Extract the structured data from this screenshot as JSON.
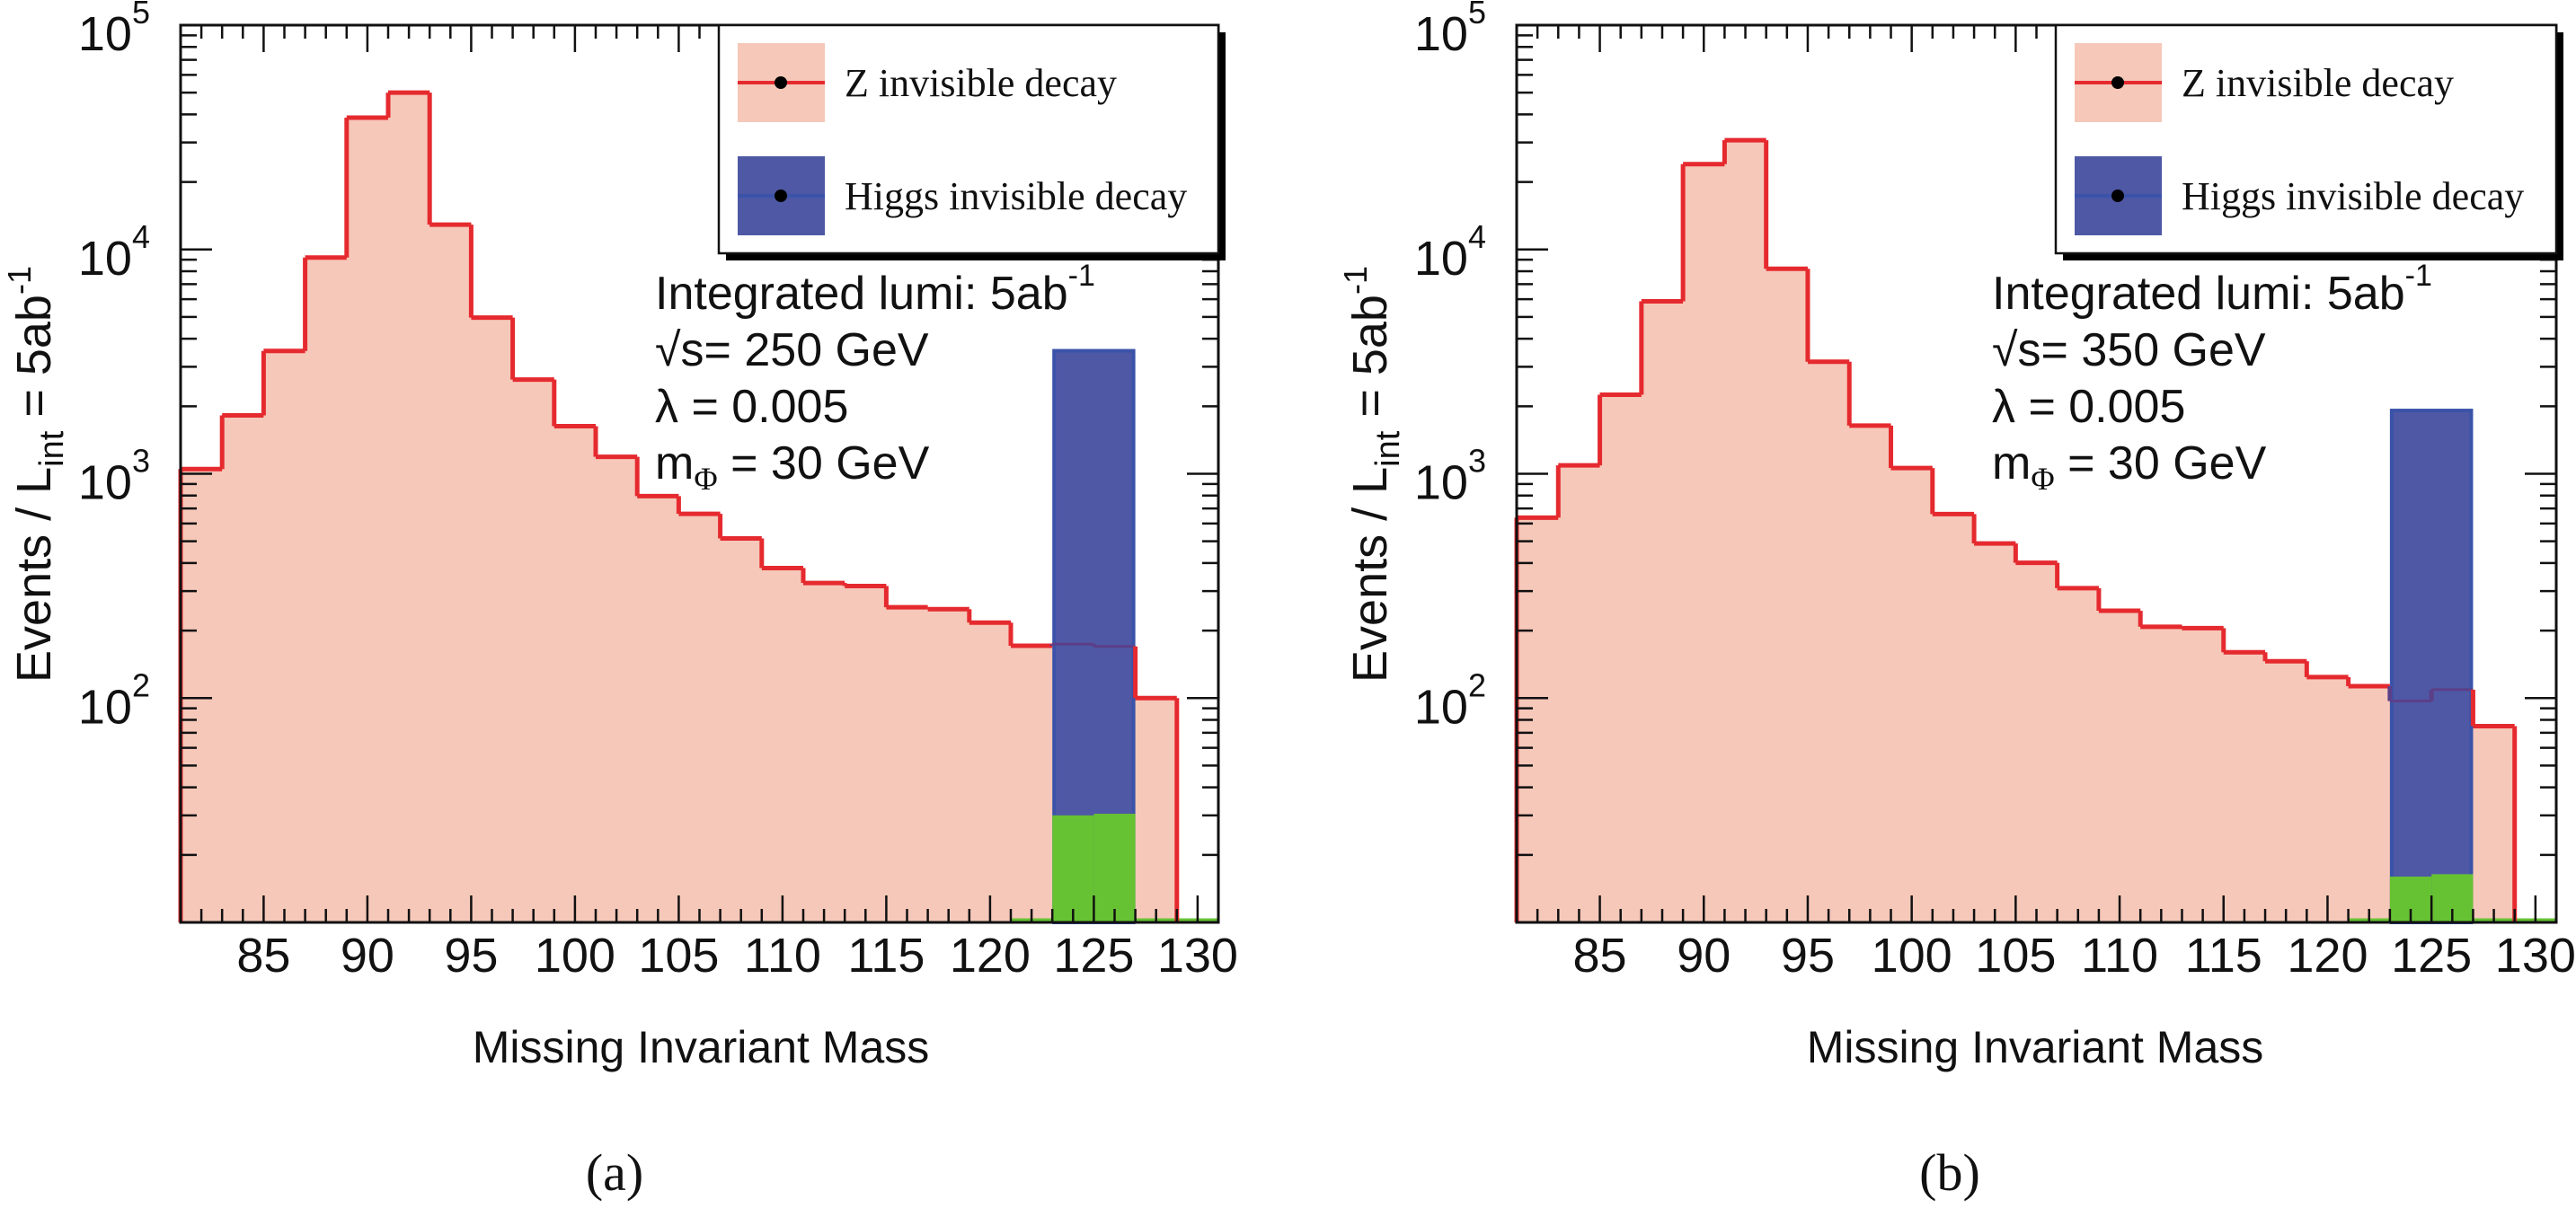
{
  "colors": {
    "z_fill": "#F6C8B9",
    "z_line": "#E52A2F",
    "higgs_fill": "#4F58A5",
    "higgs_edge": "#3A53A8",
    "overlap_line": "#5B3F88",
    "green": "#66C233",
    "axis": "#111111"
  },
  "chart_data": [
    {
      "type": "bar",
      "histogram": true,
      "panel_caption": "(a)",
      "xlabel": "Missing Invariant Mass",
      "ylabel_parts": [
        "Events / L",
        "int",
        " = 5ab",
        "-1"
      ],
      "ylabel": "Events / L_int = 5ab^-1",
      "yscale": "log",
      "xlim": [
        81,
        131
      ],
      "ylim": [
        10,
        100000
      ],
      "x_ticks": [
        85,
        90,
        95,
        100,
        105,
        110,
        115,
        120,
        125,
        130
      ],
      "y_ticks": [
        {
          "base": "10",
          "exp": "2",
          "value": 100
        },
        {
          "base": "10",
          "exp": "3",
          "value": 1000
        },
        {
          "base": "10",
          "exp": "4",
          "value": 10000
        },
        {
          "base": "10",
          "exp": "5",
          "value": 100000
        }
      ],
      "legend": {
        "position": "top-right",
        "entries": [
          {
            "label": "Z invisible decay",
            "series": "z"
          },
          {
            "label": "Higgs invisible decay",
            "series": "higgs"
          }
        ]
      },
      "annotations": [
        {
          "parts": [
            [
              "Integrated lumi: 5ab",
              "normal"
            ],
            [
              "-1",
              "sup"
            ]
          ]
        },
        {
          "parts": [
            [
              "√s= 250 GeV",
              "normal"
            ]
          ]
        },
        {
          "parts": [
            [
              "λ = 0.005",
              "normal"
            ]
          ]
        },
        {
          "parts": [
            [
              "m",
              "normal"
            ],
            [
              "Φ",
              "sub"
            ],
            [
              " = 30 GeV",
              "normal"
            ]
          ]
        }
      ],
      "bin_edges": [
        81,
        83,
        85,
        87,
        89,
        91,
        93,
        95,
        97,
        99,
        101,
        103,
        105,
        107,
        109,
        111,
        113,
        115,
        117,
        119,
        121,
        123,
        125,
        127,
        129,
        131
      ],
      "series": [
        {
          "name": "Z invisible decay",
          "key": "z",
          "values": [
            1050,
            1820,
            3530,
            9200,
            38700,
            50000,
            12900,
            4970,
            2630,
            1630,
            1190,
            795,
            663,
            515,
            380,
            326,
            316,
            254,
            249,
            217,
            171,
            174,
            170,
            100,
            0
          ]
        },
        {
          "name": "Higgs invisible decay",
          "key": "higgs",
          "bins": [
            [
              123,
              127
            ]
          ],
          "values": [
            3600
          ]
        },
        {
          "name": "green component",
          "key": "green",
          "bins": [
            [
              123,
              125
            ],
            [
              125,
              127
            ]
          ],
          "values": [
            30,
            30.5
          ],
          "baseline_range": [
            121,
            131
          ]
        }
      ]
    },
    {
      "type": "bar",
      "histogram": true,
      "panel_caption": "(b)",
      "xlabel": "Missing Invariant Mass",
      "ylabel_parts": [
        "Events / L",
        "int",
        " = 5ab",
        "-1"
      ],
      "ylabel": "Events / L_int = 5ab^-1",
      "yscale": "log",
      "xlim": [
        81,
        131
      ],
      "ylim": [
        10,
        100000
      ],
      "x_ticks": [
        85,
        90,
        95,
        100,
        105,
        110,
        115,
        120,
        125,
        130
      ],
      "y_ticks": [
        {
          "base": "10",
          "exp": "2",
          "value": 100
        },
        {
          "base": "10",
          "exp": "3",
          "value": 1000
        },
        {
          "base": "10",
          "exp": "4",
          "value": 10000
        },
        {
          "base": "10",
          "exp": "5",
          "value": 100000
        }
      ],
      "legend": {
        "position": "top-right",
        "entries": [
          {
            "label": "Z invisible decay",
            "series": "z"
          },
          {
            "label": "Higgs invisible decay",
            "series": "higgs"
          }
        ]
      },
      "annotations": [
        {
          "parts": [
            [
              "Integrated lumi: 5ab",
              "normal"
            ],
            [
              "-1",
              "sup"
            ]
          ]
        },
        {
          "parts": [
            [
              "√s= 350 GeV",
              "normal"
            ]
          ]
        },
        {
          "parts": [
            [
              "λ = 0.005",
              "normal"
            ]
          ]
        },
        {
          "parts": [
            [
              "m",
              "normal"
            ],
            [
              "Φ",
              "sub"
            ],
            [
              " = 30 GeV",
              "normal"
            ]
          ]
        }
      ],
      "bin_edges": [
        81,
        83,
        85,
        87,
        89,
        91,
        93,
        95,
        97,
        99,
        101,
        103,
        105,
        107,
        109,
        111,
        113,
        115,
        117,
        119,
        121,
        123,
        125,
        127,
        129,
        131
      ],
      "series": [
        {
          "name": "Z invisible decay",
          "key": "z",
          "values": [
            637,
            1090,
            2250,
            5870,
            24000,
            30700,
            8200,
            3160,
            1640,
            1060,
            661,
            489,
            401,
            309,
            245,
            208,
            205,
            160,
            146,
            124,
            113,
            97,
            109,
            75,
            0
          ]
        },
        {
          "name": "Higgs invisible decay",
          "key": "higgs",
          "bins": [
            [
              123,
              127
            ]
          ],
          "values": [
            1950
          ]
        },
        {
          "name": "green component",
          "key": "green",
          "bins": [
            [
              123,
              125
            ],
            [
              125,
              127
            ]
          ],
          "values": [
            16,
            16.4
          ],
          "baseline_range": [
            121,
            131
          ]
        }
      ]
    }
  ]
}
